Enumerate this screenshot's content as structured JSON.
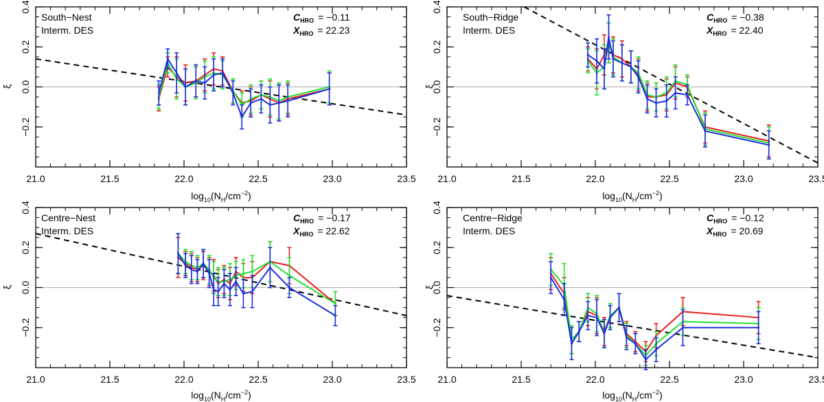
{
  "chart_data": [
    {
      "type": "line",
      "title": "South−Nest",
      "subtitle": "Interm. DES",
      "c_label": "C",
      "c_sub": "HRO",
      "c_value": "=  −0.11",
      "x_label": "X",
      "x_sub": "HRO",
      "x_value": "=   22.23",
      "xlabel_pre": "log",
      "xlabel_sub": "10",
      "xlabel_mid": "(N",
      "xlabel_nsub": "H",
      "xlabel_post": "/cm",
      "xlabel_sup": "−2",
      "xlabel_end": ")",
      "ylabel": "ξ",
      "xlim": [
        21.0,
        23.5
      ],
      "ylim": [
        -0.4,
        0.4
      ],
      "xticks": [
        "21.0",
        "21.5",
        "22.0",
        "22.5",
        "23.0",
        "23.5"
      ],
      "yticks": [
        "−0.2",
        "0.0",
        "0.2",
        "0.4"
      ],
      "fit_line": [
        [
          21.0,
          0.14
        ],
        [
          23.5,
          -0.14
        ]
      ],
      "x": [
        21.83,
        21.89,
        21.95,
        22.01,
        22.08,
        22.14,
        22.2,
        22.26,
        22.33,
        22.39,
        22.45,
        22.52,
        22.58,
        22.64,
        22.7,
        22.98
      ],
      "series": [
        {
          "name": "red",
          "color": "#e8201c",
          "values": [
            -0.06,
            0.1,
            0.05,
            0.02,
            0.03,
            0.06,
            0.09,
            0.08,
            -0.02,
            -0.08,
            -0.07,
            -0.04,
            -0.06,
            -0.08,
            -0.06,
            -0.01
          ],
          "err": [
            0.06,
            0.05,
            0.1,
            0.09,
            0.08,
            0.08,
            0.08,
            0.07,
            0.06,
            0.06,
            0.07,
            0.07,
            0.09,
            0.09,
            0.08,
            0.08
          ]
        },
        {
          "name": "green",
          "color": "#22e030",
          "values": [
            -0.05,
            0.12,
            0.04,
            0.0,
            0.02,
            0.05,
            0.07,
            0.06,
            -0.02,
            -0.09,
            -0.06,
            -0.04,
            -0.05,
            -0.07,
            -0.05,
            0.0
          ],
          "err": [
            0.06,
            0.05,
            0.1,
            0.09,
            0.08,
            0.08,
            0.08,
            0.07,
            0.06,
            0.06,
            0.07,
            0.07,
            0.09,
            0.09,
            0.08,
            0.08
          ]
        },
        {
          "name": "blue",
          "color": "#1a2ee0",
          "values": [
            -0.03,
            0.14,
            0.07,
            0.0,
            0.03,
            0.02,
            0.06,
            0.07,
            -0.03,
            -0.15,
            -0.08,
            -0.06,
            -0.09,
            -0.08,
            -0.07,
            -0.01
          ],
          "err": [
            0.06,
            0.05,
            0.1,
            0.09,
            0.08,
            0.08,
            0.08,
            0.07,
            0.06,
            0.06,
            0.07,
            0.07,
            0.09,
            0.09,
            0.08,
            0.08
          ]
        }
      ]
    },
    {
      "type": "line",
      "title": "South−Ridge",
      "subtitle": "Interm. DES",
      "c_label": "C",
      "c_sub": "HRO",
      "c_value": "=  −0.38",
      "x_label": "X",
      "x_sub": "HRO",
      "x_value": "=   22.40",
      "xlabel_pre": "log",
      "xlabel_sub": "10",
      "xlabel_mid": "(N",
      "xlabel_nsub": "H",
      "xlabel_post": "/cm",
      "xlabel_sup": "−2",
      "xlabel_end": ")",
      "ylabel": "ξ",
      "xlim": [
        21.0,
        23.5
      ],
      "ylim": [
        -0.4,
        0.4
      ],
      "xticks": [
        "21.0",
        "21.5",
        "22.0",
        "22.5",
        "23.0",
        "23.5"
      ],
      "yticks": [
        "−0.2",
        "0.0",
        "0.2",
        "0.4"
      ],
      "fit_line": [
        [
          21.52,
          0.4
        ],
        [
          23.5,
          -0.38
        ]
      ],
      "x": [
        21.95,
        22.01,
        22.06,
        22.09,
        22.12,
        22.18,
        22.24,
        22.29,
        22.35,
        22.41,
        22.48,
        22.54,
        22.62,
        22.74,
        23.17
      ],
      "series": [
        {
          "name": "red",
          "color": "#e8201c",
          "values": [
            0.14,
            0.09,
            0.16,
            0.22,
            0.16,
            0.14,
            0.1,
            0.06,
            -0.05,
            -0.05,
            -0.04,
            0.02,
            0.0,
            -0.2,
            -0.27
          ],
          "err": [
            0.06,
            0.1,
            0.1,
            0.1,
            0.09,
            0.09,
            0.08,
            0.08,
            0.07,
            0.07,
            0.08,
            0.08,
            0.05,
            0.08,
            0.08
          ]
        },
        {
          "name": "green",
          "color": "#22e030",
          "values": [
            0.13,
            0.07,
            0.1,
            0.22,
            0.15,
            0.12,
            0.1,
            0.07,
            -0.04,
            -0.05,
            -0.03,
            0.03,
            0.01,
            -0.21,
            -0.28
          ],
          "err": [
            0.06,
            0.11,
            0.11,
            0.1,
            0.09,
            0.09,
            0.08,
            0.08,
            0.07,
            0.07,
            0.08,
            0.08,
            0.05,
            0.08,
            0.08
          ]
        },
        {
          "name": "blue",
          "color": "#1a2ee0",
          "values": [
            0.16,
            0.13,
            0.09,
            0.25,
            0.14,
            0.12,
            0.1,
            0.05,
            -0.06,
            -0.08,
            -0.07,
            -0.03,
            -0.04,
            -0.22,
            -0.29
          ],
          "err": [
            0.06,
            0.11,
            0.1,
            0.11,
            0.09,
            0.09,
            0.08,
            0.08,
            0.07,
            0.07,
            0.08,
            0.08,
            0.05,
            0.08,
            0.07
          ]
        }
      ]
    },
    {
      "type": "line",
      "title": "Centre−Nest",
      "subtitle": "Interm. DES",
      "c_label": "C",
      "c_sub": "HRO",
      "c_value": "=  −0.17",
      "x_label": "X",
      "x_sub": "HRO",
      "x_value": "=   22.62",
      "xlabel_pre": "log",
      "xlabel_sub": "10",
      "xlabel_mid": "(N",
      "xlabel_nsub": "H",
      "xlabel_post": "/cm",
      "xlabel_sup": "−2",
      "xlabel_end": ")",
      "ylabel": "ξ",
      "xlim": [
        21.0,
        23.5
      ],
      "ylim": [
        -0.4,
        0.4
      ],
      "xticks": [
        "21.0",
        "21.5",
        "22.0",
        "22.5",
        "23.0",
        "23.5"
      ],
      "yticks": [
        "−0.2",
        "0.0",
        "0.2",
        "0.4"
      ],
      "fit_line": [
        [
          21.0,
          0.27
        ],
        [
          23.5,
          -0.14
        ]
      ],
      "x": [
        21.96,
        22.01,
        22.05,
        22.09,
        22.13,
        22.17,
        22.2,
        22.23,
        22.27,
        22.31,
        22.35,
        22.4,
        22.46,
        22.58,
        22.71,
        23.02
      ],
      "series": [
        {
          "name": "red",
          "color": "#e8201c",
          "values": [
            0.15,
            0.12,
            0.1,
            0.09,
            0.11,
            0.08,
            0.06,
            0.02,
            0.04,
            0.02,
            0.08,
            0.05,
            0.05,
            0.13,
            0.11,
            -0.08
          ],
          "err": [
            0.1,
            0.06,
            0.07,
            0.06,
            0.07,
            0.07,
            0.08,
            0.07,
            0.07,
            0.08,
            0.07,
            0.07,
            0.08,
            0.1,
            0.09,
            0.06
          ]
        },
        {
          "name": "green",
          "color": "#22e030",
          "values": [
            0.17,
            0.13,
            0.11,
            0.1,
            0.12,
            0.09,
            0.05,
            0.03,
            0.03,
            0.04,
            0.06,
            0.07,
            0.08,
            0.13,
            0.06,
            -0.08
          ],
          "err": [
            0.1,
            0.06,
            0.07,
            0.06,
            0.07,
            0.07,
            0.08,
            0.07,
            0.07,
            0.08,
            0.07,
            0.07,
            0.08,
            0.1,
            0.09,
            0.06
          ]
        },
        {
          "name": "blue",
          "color": "#1a2ee0",
          "values": [
            0.17,
            0.11,
            0.09,
            0.08,
            0.12,
            0.07,
            -0.01,
            -0.02,
            0.02,
            -0.01,
            0.03,
            -0.03,
            -0.02,
            0.1,
            0.0,
            -0.14
          ],
          "err": [
            0.1,
            0.06,
            0.07,
            0.06,
            0.07,
            0.07,
            0.08,
            0.07,
            0.07,
            0.08,
            0.07,
            0.07,
            0.08,
            0.1,
            0.05,
            0.05
          ]
        }
      ]
    },
    {
      "type": "line",
      "title": "Centre−Ridge",
      "subtitle": "Interm. DES",
      "c_label": "C",
      "c_sub": "HRO",
      "c_value": "=  −0.12",
      "x_label": "X",
      "x_sub": "HRO",
      "x_value": "=   20.69",
      "xlabel_pre": "log",
      "xlabel_sub": "10",
      "xlabel_mid": "(N",
      "xlabel_nsub": "H",
      "xlabel_post": "/cm",
      "xlabel_sup": "−2",
      "xlabel_end": ")",
      "ylabel": "ξ",
      "xlim": [
        21.0,
        23.5
      ],
      "ylim": [
        -0.4,
        0.4
      ],
      "xticks": [
        "21.0",
        "21.5",
        "22.0",
        "22.5",
        "23.0",
        "23.5"
      ],
      "yticks": [
        "−0.2",
        "0.0",
        "0.2",
        "0.4"
      ],
      "fit_line": [
        [
          21.0,
          -0.04
        ],
        [
          23.5,
          -0.35
        ]
      ],
      "x": [
        21.7,
        21.79,
        21.84,
        21.89,
        21.95,
        22.01,
        22.06,
        22.1,
        22.16,
        22.21,
        22.27,
        22.34,
        22.41,
        22.59,
        23.1
      ],
      "series": [
        {
          "name": "red",
          "color": "#e8201c",
          "values": [
            0.07,
            -0.03,
            -0.26,
            -0.22,
            -0.12,
            -0.14,
            -0.22,
            -0.14,
            -0.1,
            -0.23,
            -0.27,
            -0.32,
            -0.24,
            -0.12,
            -0.15
          ],
          "err": [
            0.08,
            0.08,
            0.07,
            0.05,
            0.07,
            0.09,
            0.07,
            0.06,
            0.07,
            0.06,
            0.05,
            0.05,
            0.06,
            0.07,
            0.08
          ]
        },
        {
          "name": "green",
          "color": "#22e030",
          "values": [
            0.09,
            0.01,
            -0.26,
            -0.22,
            -0.1,
            -0.13,
            -0.23,
            -0.14,
            -0.1,
            -0.24,
            -0.28,
            -0.34,
            -0.28,
            -0.17,
            -0.18
          ],
          "err": [
            0.08,
            0.11,
            0.07,
            0.05,
            0.07,
            0.09,
            0.07,
            0.06,
            0.07,
            0.06,
            0.05,
            0.05,
            0.06,
            0.07,
            0.08
          ]
        },
        {
          "name": "blue",
          "color": "#1a2ee0",
          "values": [
            0.05,
            -0.06,
            -0.28,
            -0.22,
            -0.14,
            -0.15,
            -0.23,
            -0.15,
            -0.1,
            -0.25,
            -0.28,
            -0.36,
            -0.31,
            -0.2,
            -0.2
          ],
          "err": [
            0.08,
            0.08,
            0.08,
            0.05,
            0.07,
            0.09,
            0.07,
            0.06,
            0.07,
            0.06,
            0.05,
            0.05,
            0.06,
            0.09,
            0.08
          ]
        }
      ]
    }
  ]
}
